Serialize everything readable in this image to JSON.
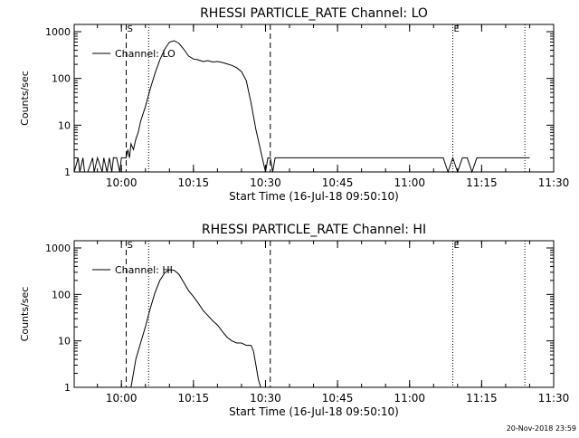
{
  "footer_timestamp": "20-Nov-2018 23:59",
  "chart_data": [
    {
      "type": "line",
      "title": "RHESSI PARTICLE_RATE Channel: LO",
      "xlabel": "Start Time (16-Jul-18 09:50:10)",
      "ylabel": "Counts/sec",
      "yscale": "log",
      "ylim": [
        1,
        1000
      ],
      "xlim": [
        "09:50:10",
        "11:30:00"
      ],
      "x_ticks": [
        "10:00",
        "10:15",
        "10:30",
        "10:45",
        "11:00",
        "11:15",
        "11:30"
      ],
      "y_ticks": [
        "1",
        "10",
        "100",
        "1000"
      ],
      "grid": false,
      "legend": {
        "position": "top-left",
        "entries": [
          "Channel: LO"
        ]
      },
      "markers": [
        {
          "label": "S",
          "time": "10:01",
          "style": "dashed"
        },
        {
          "label": "",
          "time": "10:05:40",
          "style": "dotted"
        },
        {
          "label": "",
          "time": "10:31",
          "style": "dashed"
        },
        {
          "label": "E",
          "time": "11:09",
          "style": "dotted"
        },
        {
          "label": "",
          "time": "11:24",
          "style": "dotted"
        }
      ],
      "series": [
        {
          "name": "Channel: LO",
          "x": [
            "09:50:10",
            "09:51:00",
            "09:51:20",
            "09:52:00",
            "09:52:20",
            "09:53:00",
            "09:54:00",
            "09:54:20",
            "09:55:00",
            "09:56:00",
            "09:56:20",
            "09:57:00",
            "09:57:30",
            "09:58:00",
            "09:58:20",
            "09:59:00",
            "09:59:40",
            "10:00:00",
            "10:00:30",
            "10:01:00",
            "10:01:20",
            "10:01:40",
            "10:02:00",
            "10:02:30",
            "10:03:00",
            "10:03:30",
            "10:04:00",
            "10:05:00",
            "10:06:00",
            "10:07:00",
            "10:08:00",
            "10:09:00",
            "10:10:00",
            "10:11:00",
            "10:12:00",
            "10:13:00",
            "10:14:00",
            "10:15:00",
            "10:16:00",
            "10:17:00",
            "10:18:00",
            "10:19:00",
            "10:20:00",
            "10:21:00",
            "10:22:00",
            "10:23:00",
            "10:24:00",
            "10:25:00",
            "10:26:00",
            "10:27:00",
            "10:28:00",
            "10:28:40",
            "10:29:20",
            "10:30:00",
            "10:30:30",
            "10:31:00",
            "10:31:30",
            "10:32:00",
            "10:32:30",
            "10:33:00",
            "10:34:00",
            "10:35:00",
            "10:36:00",
            "10:37:00",
            "10:38:00",
            "10:40:00",
            "10:42:00",
            "10:45:00",
            "10:48:00",
            "10:50:00",
            "10:53:00",
            "10:56:00",
            "10:59:00",
            "11:02:00",
            "11:05:00",
            "11:07:00",
            "11:08:00",
            "11:09:00",
            "11:10:00",
            "11:11:00",
            "11:12:00",
            "11:13:00",
            "11:14:00",
            "11:15:00",
            "11:16:00",
            "11:17:00",
            "11:18:00",
            "11:20:00",
            "11:22:00",
            "11:24:00",
            "11:25:00"
          ],
          "y": [
            1,
            2,
            1,
            2,
            1,
            1,
            2,
            1,
            2,
            1,
            2,
            1,
            2,
            1,
            2,
            2,
            1,
            2,
            2,
            2,
            3,
            2,
            4,
            3,
            5,
            7,
            12,
            25,
            60,
            130,
            250,
            420,
            600,
            640,
            560,
            420,
            300,
            260,
            250,
            230,
            240,
            225,
            230,
            220,
            205,
            190,
            170,
            140,
            90,
            30,
            8,
            4,
            2,
            1,
            2,
            2,
            1,
            2,
            2,
            2,
            2,
            2,
            2,
            2,
            2,
            2,
            2,
            2,
            2,
            2,
            2,
            2,
            2,
            2,
            2,
            2,
            1,
            2,
            1,
            2,
            2,
            1,
            2,
            2,
            2,
            2,
            2,
            2,
            2,
            2,
            2
          ]
        }
      ]
    },
    {
      "type": "line",
      "title": "RHESSI PARTICLE_RATE Channel: HI",
      "xlabel": "Start Time (16-Jul-18 09:50:10)",
      "ylabel": "Counts/sec",
      "yscale": "log",
      "ylim": [
        1,
        1000
      ],
      "xlim": [
        "09:50:10",
        "11:30:00"
      ],
      "x_ticks": [
        "10:00",
        "10:15",
        "10:30",
        "10:45",
        "11:00",
        "11:15",
        "11:30"
      ],
      "y_ticks": [
        "1",
        "10",
        "100",
        "1000"
      ],
      "grid": false,
      "legend": {
        "position": "top-left",
        "entries": [
          "Channel: HI"
        ]
      },
      "markers": [
        {
          "label": "S",
          "time": "10:01",
          "style": "dashed"
        },
        {
          "label": "",
          "time": "10:05:40",
          "style": "dotted"
        },
        {
          "label": "",
          "time": "10:31",
          "style": "dashed"
        },
        {
          "label": "E",
          "time": "11:09",
          "style": "dotted"
        },
        {
          "label": "",
          "time": "11:24",
          "style": "dotted"
        }
      ],
      "series": [
        {
          "name": "Channel: HI",
          "x": [
            "10:02:00",
            "10:02:30",
            "10:03:00",
            "10:04:00",
            "10:05:00",
            "10:06:00",
            "10:07:00",
            "10:08:00",
            "10:09:00",
            "10:10:00",
            "10:11:00",
            "10:12:00",
            "10:13:00",
            "10:14:00",
            "10:15:00",
            "10:16:00",
            "10:17:00",
            "10:18:00",
            "10:19:00",
            "10:20:00",
            "10:21:00",
            "10:22:00",
            "10:23:00",
            "10:24:00",
            "10:25:00",
            "10:26:00",
            "10:27:00",
            "10:27:30",
            "10:28:00",
            "10:28:30",
            "10:29:00"
          ],
          "y": [
            1,
            2,
            4,
            9,
            20,
            50,
            110,
            200,
            290,
            340,
            330,
            270,
            180,
            120,
            90,
            65,
            45,
            35,
            27,
            22,
            16,
            12,
            10,
            9,
            9,
            8,
            8,
            6,
            3,
            1.5,
            1
          ]
        }
      ]
    }
  ]
}
